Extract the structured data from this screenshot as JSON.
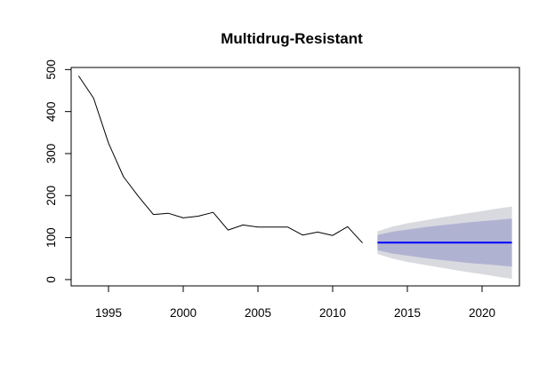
{
  "chart_data": {
    "type": "line",
    "title": "Multidrug-Resistant",
    "xlabel": "",
    "ylabel": "",
    "xlim": [
      1992.5,
      2022.5
    ],
    "ylim": [
      -15,
      505
    ],
    "x_ticks": [
      1995,
      2000,
      2005,
      2010,
      2015,
      2020
    ],
    "y_ticks": [
      0,
      100,
      200,
      300,
      400,
      500
    ],
    "grid": false,
    "series": [
      {
        "x": [
          1993,
          1994,
          1995,
          1996,
          1997,
          1998,
          1999,
          2000,
          2001,
          2002,
          2003,
          2004,
          2005,
          2006,
          2007,
          2008,
          2009,
          2010,
          2011,
          2012
        ],
        "values": [
          485,
          432,
          325,
          245,
          198,
          155,
          158,
          147,
          151,
          160,
          118,
          130,
          125,
          125,
          125,
          106,
          113,
          105,
          126,
          87
        ],
        "color": "#000000"
      },
      {
        "x": [
          2013,
          2014,
          2015,
          2016,
          2017,
          2018,
          2019,
          2020,
          2021,
          2022
        ],
        "values": [
          88,
          88,
          88,
          88,
          88,
          88,
          88,
          88,
          88,
          88
        ],
        "color": "#0000ff"
      }
    ],
    "bands": [
      {
        "x": [
          2013,
          2014,
          2015,
          2016,
          2017,
          2018,
          2019,
          2020,
          2021,
          2022
        ],
        "lower": [
          61,
          50,
          42,
          36,
          30,
          24,
          18,
          13,
          7,
          2
        ],
        "upper": [
          115,
          126,
          134,
          140,
          146,
          152,
          158,
          163,
          169,
          174
        ],
        "color": "#d9d9e0"
      },
      {
        "x": [
          2013,
          2014,
          2015,
          2016,
          2017,
          2018,
          2019,
          2020,
          2021,
          2022
        ],
        "lower": [
          70,
          62,
          57,
          52,
          48,
          44,
          40,
          37,
          34,
          31
        ],
        "upper": [
          106,
          114,
          119,
          124,
          128,
          132,
          136,
          139,
          142,
          145
        ],
        "color": "#b0b2d1"
      }
    ]
  }
}
